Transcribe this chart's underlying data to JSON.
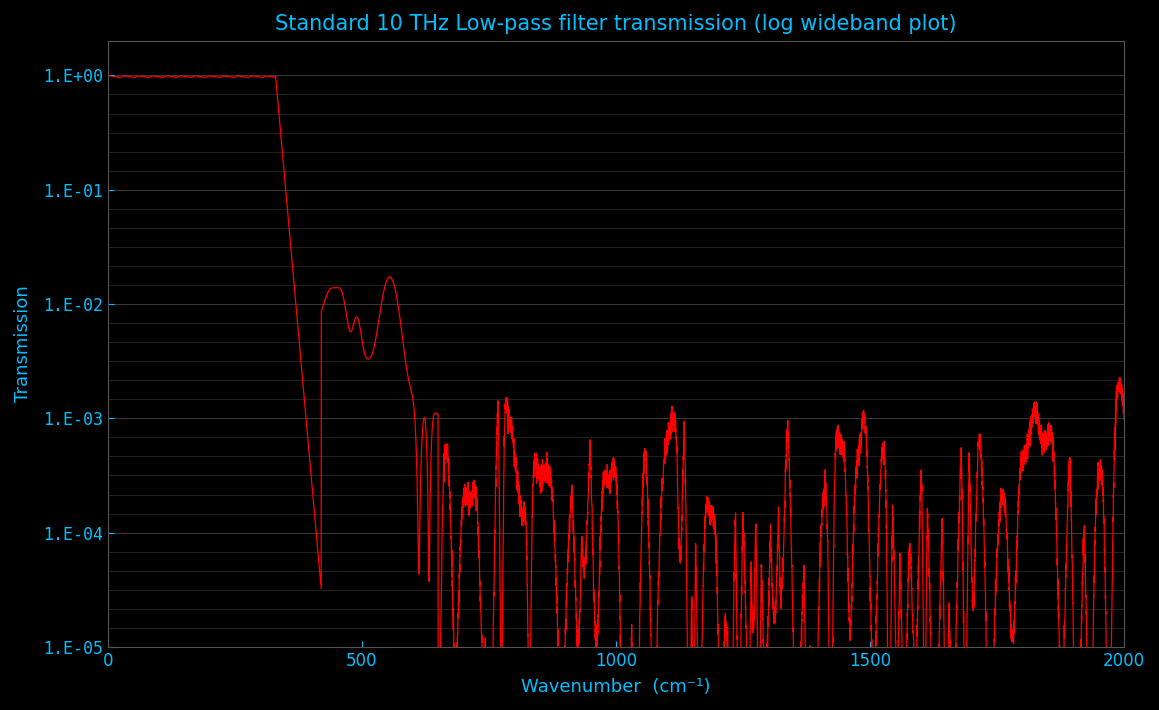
{
  "title": "Standard 10 THz Low-pass filter transmission (log wideband plot)",
  "xlabel": "Wavenumber  (cm⁻¹)",
  "ylabel": "Transmission",
  "background_color": "#000000",
  "line_color": "#ff0000",
  "text_color": "#00bfff",
  "xlim": [
    0,
    2000
  ],
  "ylim_log": [
    1e-05,
    2.0
  ],
  "yticks": [
    1.0,
    0.1,
    0.01,
    0.001,
    0.0001,
    1e-05
  ],
  "ytick_labels": [
    "1.E+00",
    "1.E-01",
    "1.E-02",
    "1.E-03",
    "1.E-04",
    "1.E-05"
  ],
  "xticks": [
    0,
    500,
    1000,
    1500,
    2000
  ],
  "title_fontsize": 15,
  "label_fontsize": 13,
  "tick_fontsize": 12,
  "line_width": 0.9,
  "grid_major_color": "#3a3a3a",
  "grid_minor_color": "#2a2a2a",
  "spine_color": "#555555"
}
